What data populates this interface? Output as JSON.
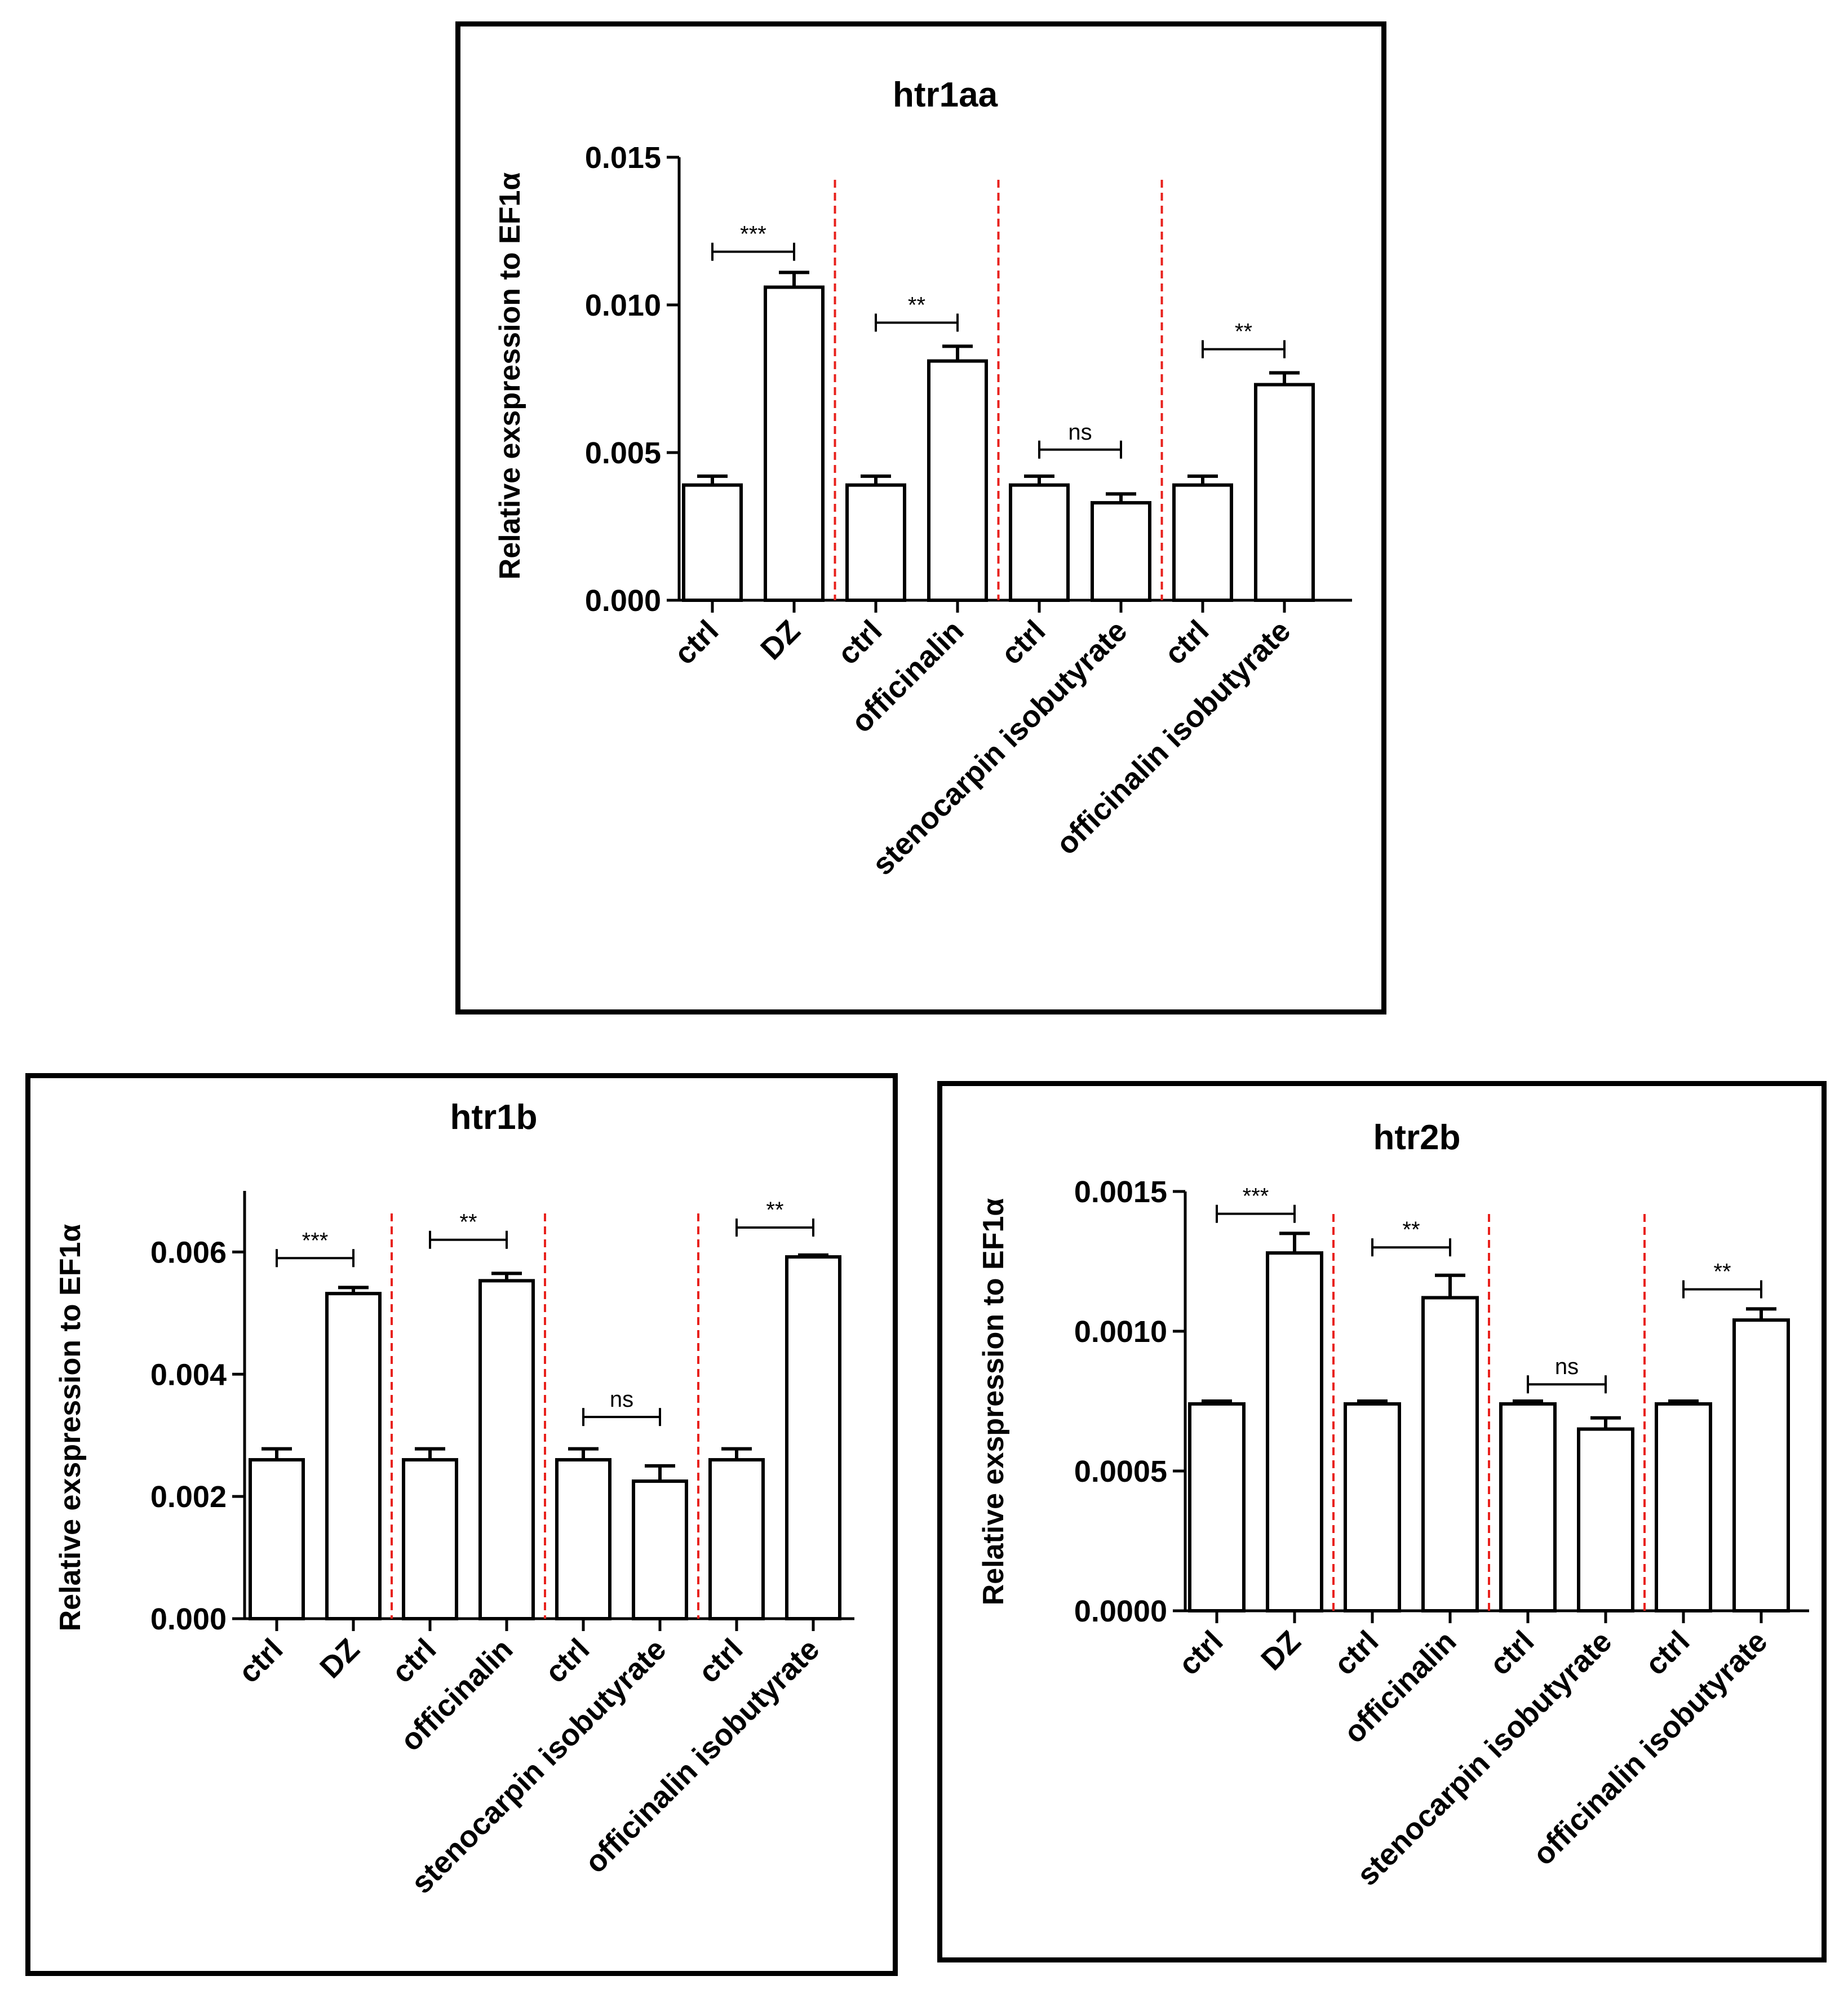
{
  "chart_data": [
    {
      "type": "bar",
      "title": "htr1aa",
      "ylabel": "Relative exspression to EF1α",
      "xlabel": "",
      "categories": [
        "ctrl",
        "DZ",
        "ctrl",
        "officinalin",
        "ctrl",
        "stenocarpin isobutyrate",
        "ctrl",
        "officinalin isobutyrate"
      ],
      "values": [
        0.0039,
        0.0106,
        0.0039,
        0.0081,
        0.0039,
        0.0033,
        0.0039,
        0.0073
      ],
      "errors": [
        0.0003,
        0.0005,
        0.0003,
        0.0005,
        0.0003,
        0.0003,
        0.0003,
        0.0004
      ],
      "ylim": [
        0,
        0.015
      ],
      "yticks": [
        0,
        0.005,
        0.01,
        0.015
      ],
      "ytick_labels": [
        "0.000",
        "0.005",
        "0.010",
        "0.015"
      ],
      "group_separators": "red dashed",
      "significance": [
        {
          "label": "***",
          "between": [
            0,
            1
          ],
          "y": 0.0118
        },
        {
          "label": "**",
          "between": [
            2,
            3
          ],
          "y": 0.0094
        },
        {
          "label": "ns",
          "between": [
            4,
            5
          ],
          "y": 0.0051
        },
        {
          "label": "**",
          "between": [
            6,
            7
          ],
          "y": 0.0085
        }
      ]
    },
    {
      "type": "bar",
      "title": "htr1b",
      "ylabel": "Relative exspression to EF1α",
      "xlabel": "",
      "categories": [
        "ctrl",
        "DZ",
        "ctrl",
        "officinalin",
        "ctrl",
        "stenocarpin isobutyrate",
        "ctrl",
        "officinalin isobutyrate"
      ],
      "values": [
        0.0026,
        0.00532,
        0.0026,
        0.00553,
        0.0026,
        0.00225,
        0.0026,
        0.00592
      ],
      "errors": [
        0.00018,
        0.0001,
        0.00018,
        0.00012,
        0.00018,
        0.00025,
        0.00018,
        3e-05
      ],
      "ylim": [
        0,
        0.007
      ],
      "yticks": [
        0,
        0.002,
        0.004,
        0.006
      ],
      "ytick_labels": [
        "0.000",
        "0.002",
        "0.004",
        "0.006"
      ],
      "group_separators": "red dashed",
      "significance": [
        {
          "label": "***",
          "between": [
            0,
            1
          ],
          "y": 0.0059
        },
        {
          "label": "**",
          "between": [
            2,
            3
          ],
          "y": 0.0062
        },
        {
          "label": "ns",
          "between": [
            4,
            5
          ],
          "y": 0.0033
        },
        {
          "label": "**",
          "between": [
            6,
            7
          ],
          "y": 0.0064
        }
      ]
    },
    {
      "type": "bar",
      "title": "htr2b",
      "ylabel": "Relative exspression to EF1α",
      "xlabel": "",
      "categories": [
        "ctrl",
        "DZ",
        "ctrl",
        "officinalin",
        "ctrl",
        "stenocarpin isobutyrate",
        "ctrl",
        "officinalin isobutyrate"
      ],
      "values": [
        0.00074,
        0.00128,
        0.00074,
        0.00112,
        0.00074,
        0.00065,
        0.00074,
        0.00104
      ],
      "errors": [
        1e-05,
        7e-05,
        1e-05,
        8e-05,
        1e-05,
        4e-05,
        1e-05,
        4e-05
      ],
      "ylim": [
        0,
        0.0015
      ],
      "yticks": [
        0,
        0.0005,
        0.001,
        0.0015
      ],
      "ytick_labels": [
        "0.0000",
        "0.0005",
        "0.0010",
        "0.0015"
      ],
      "group_separators": "red dashed",
      "significance": [
        {
          "label": "***",
          "between": [
            0,
            1
          ],
          "y": 0.00142
        },
        {
          "label": "**",
          "between": [
            2,
            3
          ],
          "y": 0.0013
        },
        {
          "label": "ns",
          "between": [
            4,
            5
          ],
          "y": 0.00081
        },
        {
          "label": "**",
          "between": [
            6,
            7
          ],
          "y": 0.00115
        }
      ]
    }
  ],
  "colors": {
    "bar_fill": "#ffffff",
    "bar_stroke": "#000000",
    "separator": "#e8211c",
    "panel_border": "#000000"
  }
}
